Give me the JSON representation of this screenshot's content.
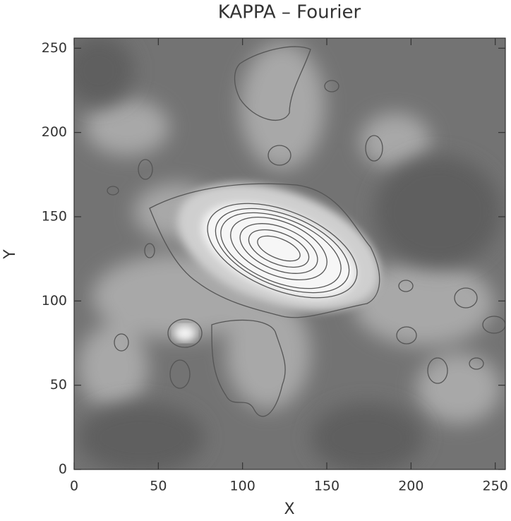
{
  "chart_data": {
    "type": "contour",
    "title": "KAPPA  –  Fourier",
    "x_label": "X",
    "y_label": "Y",
    "xlim": [
      0,
      256
    ],
    "ylim": [
      0,
      256
    ],
    "xticks": [
      0,
      50,
      100,
      150,
      200,
      250
    ],
    "yticks": [
      0,
      50,
      100,
      150,
      200,
      250
    ],
    "colormap": "gray",
    "contour_color": "#555555"
  }
}
